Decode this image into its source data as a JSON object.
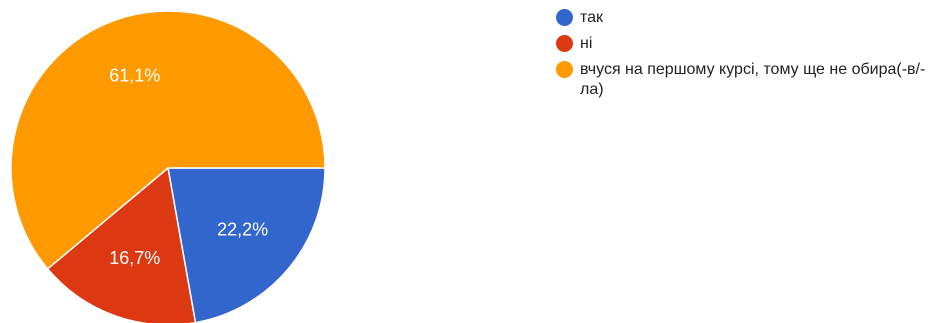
{
  "chart_data": {
    "type": "pie",
    "slices": [
      {
        "label": "так",
        "value": 22.2,
        "display": "22,2%",
        "color": "#3366cc"
      },
      {
        "label": "ні",
        "value": 16.7,
        "display": "16,7%",
        "color": "#dc3912"
      },
      {
        "label": "вчуся на першому курсі, тому ще не обира(-в/-ла)",
        "value": 61.1,
        "display": "61,1%",
        "color": "#ff9900"
      }
    ],
    "legend_position": "right"
  }
}
